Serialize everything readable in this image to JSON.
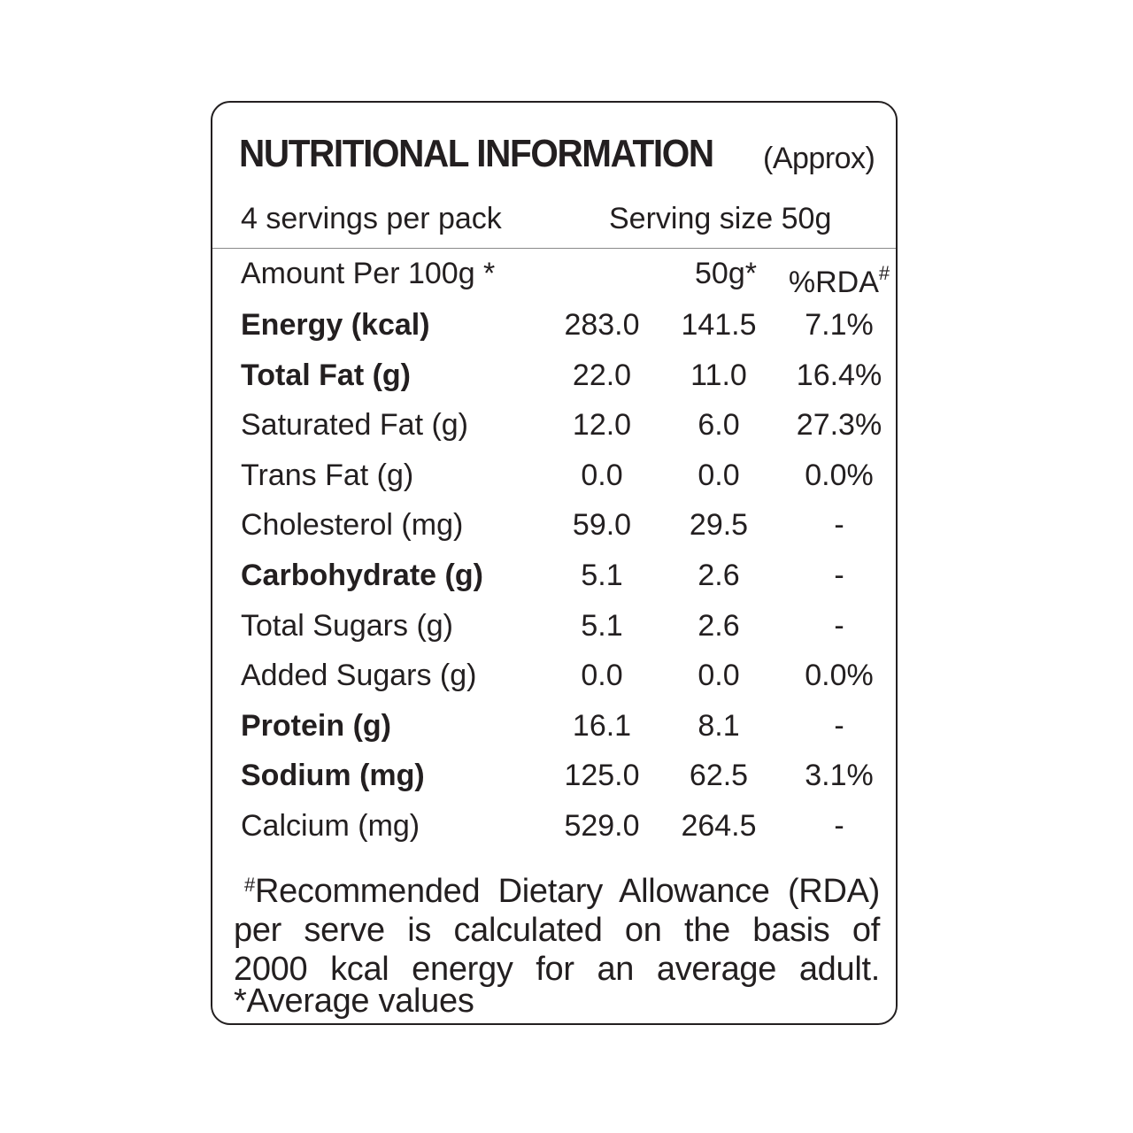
{
  "label": {
    "title": "NUTRITIONAL INFORMATION",
    "title_note": "(Approx)",
    "servings_per_pack": "4 servings per pack",
    "serving_size": "Serving size 50g"
  },
  "table": {
    "header": {
      "name": "Amount Per 100g *",
      "per_serving": "50g*",
      "rda": "%RDA",
      "rda_mark": "#"
    },
    "rows": [
      {
        "name": "Energy (kcal)",
        "per100": "283.0",
        "per50": "141.5",
        "rda": "7.1%",
        "bold": true
      },
      {
        "name": "Total Fat (g)",
        "per100": "22.0",
        "per50": "11.0",
        "rda": "16.4%",
        "bold": true
      },
      {
        "name": "Saturated Fat (g)",
        "per100": "12.0",
        "per50": "6.0",
        "rda": "27.3%",
        "bold": false
      },
      {
        "name": "Trans Fat (g)",
        "per100": "0.0",
        "per50": "0.0",
        "rda": "0.0%",
        "bold": false
      },
      {
        "name": "Cholesterol (mg)",
        "per100": "59.0",
        "per50": "29.5",
        "rda": "-",
        "bold": false
      },
      {
        "name": "Carbohydrate (g)",
        "per100": "5.1",
        "per50": "2.6",
        "rda": "-",
        "bold": true
      },
      {
        "name": "Total Sugars (g)",
        "per100": "5.1",
        "per50": "2.6",
        "rda": "-",
        "bold": false
      },
      {
        "name": "Added Sugars (g)",
        "per100": "0.0",
        "per50": "0.0",
        "rda": "0.0%",
        "bold": false
      },
      {
        "name": "Protein (g)",
        "per100": "16.1",
        "per50": "8.1",
        "rda": "-",
        "bold": true
      },
      {
        "name": "Sodium (mg)",
        "per100": "125.0",
        "per50": "62.5",
        "rda": "3.1%",
        "bold": true
      },
      {
        "name": "Calcium (mg)",
        "per100": "529.0",
        "per50": "264.5",
        "rda": "-",
        "bold": false
      }
    ]
  },
  "footnote": {
    "mark": "#",
    "line1": "Recommended Dietary Allowance (RDA)",
    "line2": "per serve is calculated on the basis of",
    "line3": "2000 kcal energy for an average adult.",
    "average_note": "*Average values"
  }
}
